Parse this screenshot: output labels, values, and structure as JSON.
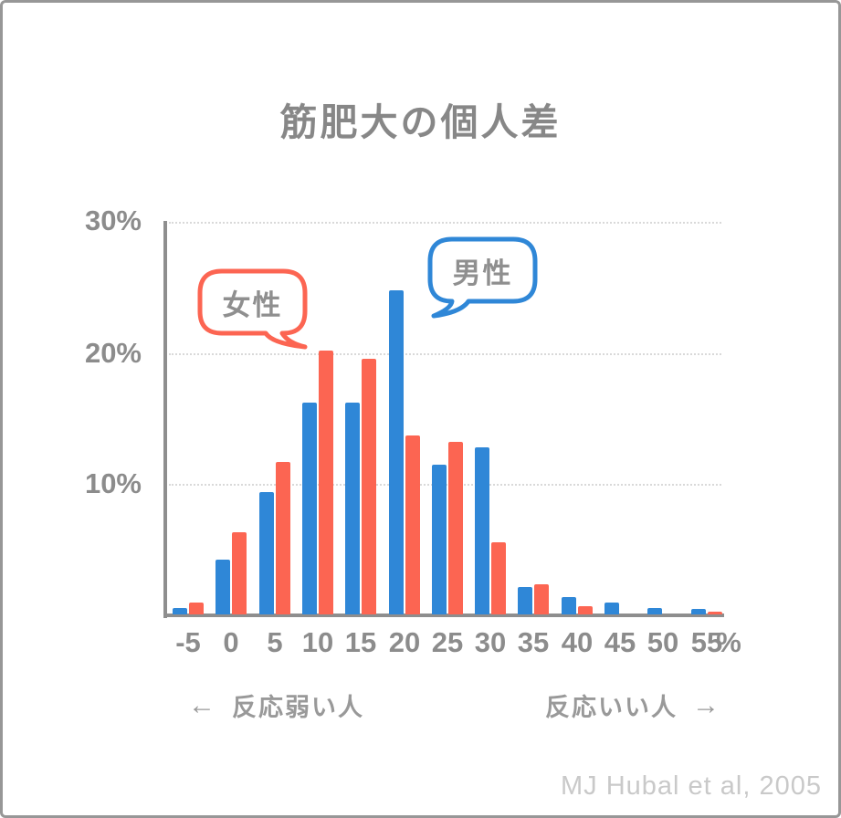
{
  "title": "筋肥大の個人差",
  "attribution": "MJ Hubal et al, 2005",
  "annotations": {
    "left_arrow": "←",
    "left_label": "反応弱い人",
    "right_label": "反応いい人",
    "right_arrow": "→"
  },
  "bubbles": {
    "female": {
      "label": "女性",
      "color": "#FC6552"
    },
    "male": {
      "label": "男性",
      "color": "#2F87D7"
    }
  },
  "chart_data": {
    "type": "bar",
    "title": "筋肥大の個人差",
    "categories": [
      -5,
      0,
      5,
      10,
      15,
      20,
      25,
      30,
      35,
      40,
      45,
      50,
      55
    ],
    "x_unit": "%",
    "xlabel": "",
    "ylabel": "",
    "ylim": [
      0,
      30
    ],
    "yticks": [
      30,
      20,
      10
    ],
    "ytick_labels": [
      "30%",
      "20%",
      "10%"
    ],
    "grid": "horizontal dotted lines at 10%, 20%, 30%",
    "legend_style": "speech bubbles pointing at series bars",
    "series": [
      {
        "name": "男性",
        "color": "#2F87D7",
        "values": [
          0.5,
          4.2,
          9.4,
          16.2,
          16.2,
          24.8,
          11.5,
          12.8,
          2.1,
          1.3,
          0.9,
          0.5,
          0.4
        ]
      },
      {
        "name": "女性",
        "color": "#FC6552",
        "values": [
          0.9,
          6.3,
          11.7,
          20.2,
          19.6,
          13.7,
          13.2,
          5.5,
          2.3,
          0.6,
          0,
          0,
          0.2
        ]
      }
    ],
    "annotations": [
      "← 反応弱い人",
      "反応いい人 →"
    ],
    "source": "MJ Hubal et al, 2005"
  }
}
